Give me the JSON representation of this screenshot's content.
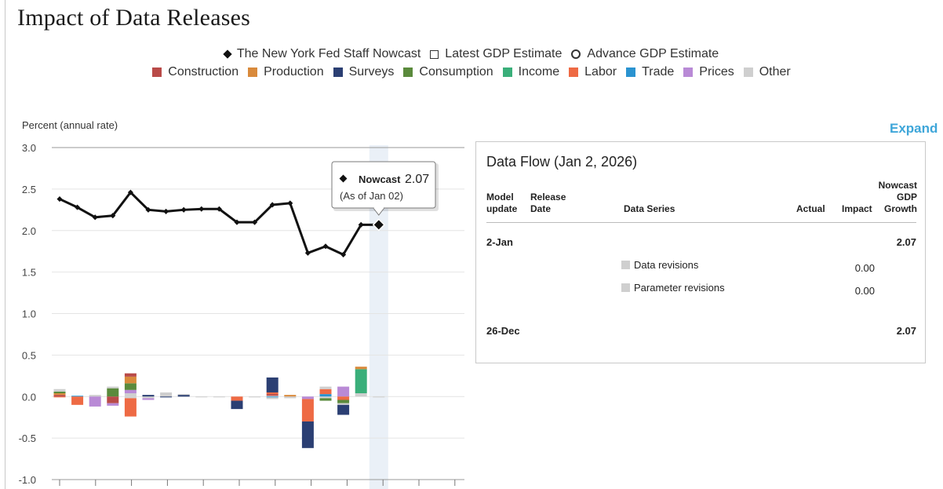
{
  "title": "Impact of Data Releases",
  "legend": {
    "row1": [
      {
        "label": "The New York Fed Staff Nowcast",
        "icon": "diamond-marker-icon"
      },
      {
        "label": "Latest GDP Estimate",
        "icon": "open-square-marker-icon"
      },
      {
        "label": "Advance GDP Estimate",
        "icon": "open-circle-marker-icon"
      }
    ],
    "row2": [
      {
        "label": "Construction",
        "color": "#b94a48"
      },
      {
        "label": "Production",
        "color": "#d98a3c"
      },
      {
        "label": "Surveys",
        "color": "#2b3f73"
      },
      {
        "label": "Consumption",
        "color": "#5a8a3c"
      },
      {
        "label": "Income",
        "color": "#3aaf7a"
      },
      {
        "label": "Labor",
        "color": "#ee6a44"
      },
      {
        "label": "Trade",
        "color": "#2a93d0"
      },
      {
        "label": "Prices",
        "color": "#b98ad6"
      },
      {
        "label": "Other",
        "color": "#cfcfcf"
      }
    ]
  },
  "expand_label": "Expand",
  "chart_data": {
    "type": "line",
    "ylabel": "Percent (annual rate)",
    "ylim": [
      -1.0,
      3.0
    ],
    "yticks": [
      "3.0",
      "2.5",
      "2.0",
      "1.5",
      "1.0",
      "0.5",
      "0.0",
      "-0.5",
      "-1.0"
    ],
    "grid": true,
    "highlight_index": 18,
    "nowcast": [
      2.38,
      2.28,
      2.16,
      2.18,
      2.46,
      2.25,
      2.23,
      2.25,
      2.26,
      2.26,
      2.1,
      2.1,
      2.31,
      2.33,
      1.73,
      1.81,
      1.71,
      2.07,
      2.07
    ],
    "impact_colors": {
      "construction": "#b94a48",
      "production": "#d98a3c",
      "surveys": "#2b3f73",
      "consumption": "#5a8a3c",
      "income": "#3aaf7a",
      "labor": "#ee6a44",
      "trade": "#2a93d0",
      "prices": "#b98ad6",
      "other": "#cfcfcf"
    },
    "impacts": [
      [
        [
          "construction",
          0.02
        ],
        [
          "production",
          0.02
        ],
        [
          "consumption",
          0.02
        ],
        [
          "other",
          0.03
        ],
        [
          "labor",
          -0.01
        ]
      ],
      [
        [
          "trade",
          0.01
        ],
        [
          "labor",
          -0.1
        ]
      ],
      [
        [
          "other",
          0.02
        ],
        [
          "prices",
          -0.12
        ]
      ],
      [
        [
          "consumption",
          0.1
        ],
        [
          "other",
          0.02
        ],
        [
          "construction",
          -0.08
        ],
        [
          "prices",
          -0.03
        ]
      ],
      [
        [
          "other",
          0.04
        ],
        [
          "prices",
          0.04
        ],
        [
          "consumption",
          0.08
        ],
        [
          "production",
          0.08
        ],
        [
          "construction",
          0.04
        ],
        [
          "other",
          -0.02
        ],
        [
          "labor",
          -0.22
        ]
      ],
      [
        [
          "surveys",
          0.02
        ],
        [
          "other",
          -0.02
        ],
        [
          "prices",
          -0.02
        ]
      ],
      [
        [
          "other",
          0.05
        ],
        [
          "surveys",
          -0.01
        ]
      ],
      [
        [
          "surveys",
          0.02
        ],
        [
          "other",
          0.01
        ]
      ],
      [
        [
          "other",
          0.0
        ]
      ],
      [
        [
          "other",
          0.0
        ]
      ],
      [
        [
          "labor",
          -0.05
        ],
        [
          "surveys",
          -0.1
        ]
      ],
      [
        [
          "other",
          -0.01
        ]
      ],
      [
        [
          "other",
          0.01
        ],
        [
          "construction",
          0.02
        ],
        [
          "labor",
          0.02
        ],
        [
          "surveys",
          0.18
        ],
        [
          "trade",
          -0.01
        ],
        [
          "other",
          -0.02
        ]
      ],
      [
        [
          "production",
          0.02
        ],
        [
          "other",
          -0.02
        ]
      ],
      [
        [
          "prices",
          -0.03
        ],
        [
          "labor",
          -0.27
        ],
        [
          "surveys",
          -0.32
        ]
      ],
      [
        [
          "trade",
          0.03
        ],
        [
          "labor",
          0.06
        ],
        [
          "other",
          0.03
        ],
        [
          "other",
          -0.02
        ],
        [
          "consumption",
          -0.03
        ]
      ],
      [
        [
          "prices",
          0.12
        ],
        [
          "labor",
          -0.04
        ],
        [
          "consumption",
          -0.04
        ],
        [
          "other",
          -0.02
        ],
        [
          "surveys",
          -0.12
        ]
      ],
      [
        [
          "other",
          0.04
        ],
        [
          "income",
          0.29
        ],
        [
          "production",
          0.03
        ]
      ],
      [
        [
          "other",
          -0.01
        ]
      ]
    ]
  },
  "tooltip": {
    "label": "Nowcast",
    "value": "2.07",
    "asof": "(As of Jan 02)"
  },
  "panel": {
    "title": "Data Flow (Jan 2, 2026)",
    "headers": {
      "model1": "Model",
      "model2": "update",
      "release1": "Release",
      "release2": "Date",
      "series": "Data Series",
      "actual": "Actual",
      "impact": "Impact",
      "nowcast1": "Nowcast",
      "nowcast2": "GDP",
      "nowcast3": "Growth"
    },
    "rows": [
      {
        "update": "2-Jan",
        "growth": "2.07"
      },
      {
        "series": "Data revisions",
        "impact": "0.00"
      },
      {
        "series": "Parameter revisions",
        "impact": "0.00"
      },
      {
        "update": "26-Dec",
        "growth": "2.07"
      }
    ]
  }
}
